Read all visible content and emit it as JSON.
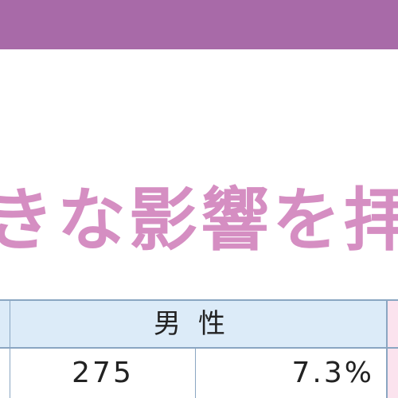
{
  "headline": {
    "text": "きな影響を拝"
  },
  "table": {
    "header_label": "男性",
    "rows": [
      {
        "count": "275",
        "percent": "7.3%"
      }
    ]
  },
  "colors": {
    "top_band": "#a86aa8",
    "headline": "#d58ec2",
    "header_bg": "#dcebf8",
    "border": "#8aa6c2",
    "pink_column": "#fbe3ee"
  }
}
